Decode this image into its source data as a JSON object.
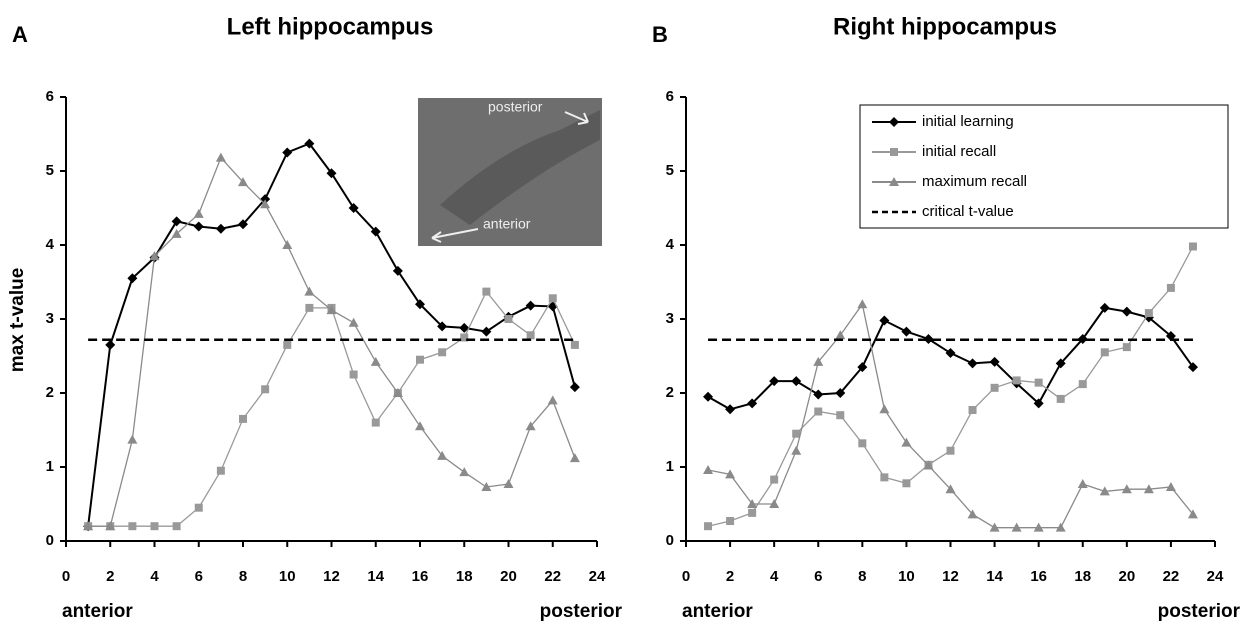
{
  "chart_data": [
    {
      "type": "line",
      "panel_label": "A",
      "title": "Left hippocampus",
      "ylabel": "max t-value",
      "x_start_label": "anterior",
      "x_end_label": "posterior",
      "inset": {
        "labels": [
          "posterior",
          "anterior"
        ]
      },
      "x": [
        1,
        2,
        3,
        4,
        5,
        6,
        7,
        8,
        9,
        10,
        11,
        12,
        13,
        14,
        15,
        16,
        17,
        18,
        19,
        20,
        21,
        22,
        23
      ],
      "series": [
        {
          "name": "initial learning",
          "color": "#000000",
          "marker": "diamond",
          "values": [
            0.2,
            2.65,
            3.55,
            3.83,
            4.32,
            4.25,
            4.22,
            4.28,
            4.62,
            5.25,
            5.37,
            4.97,
            4.5,
            4.18,
            3.65,
            3.2,
            2.9,
            2.88,
            2.83,
            3.03,
            3.18,
            3.17,
            2.08
          ]
        },
        {
          "name": "initial recall",
          "color": "#999999",
          "marker": "square",
          "values": [
            0.2,
            0.2,
            0.2,
            0.2,
            0.2,
            0.45,
            0.95,
            1.65,
            2.05,
            2.65,
            3.15,
            3.15,
            2.25,
            1.6,
            2.0,
            2.45,
            2.55,
            2.75,
            3.37,
            3.0,
            2.78,
            3.28,
            2.65
          ]
        },
        {
          "name": "maximum recall",
          "color": "#8a8a8a",
          "marker": "triangle",
          "values": [
            0.2,
            0.2,
            1.37,
            3.85,
            4.15,
            4.42,
            5.18,
            4.85,
            4.55,
            4.0,
            3.37,
            3.12,
            2.95,
            2.42,
            2.0,
            1.55,
            1.15,
            0.93,
            0.73,
            0.77,
            1.55,
            1.9,
            1.12
          ]
        },
        {
          "name": "critical t-value",
          "color": "#000000",
          "marker": "none",
          "dashed": true,
          "values": [
            2.72,
            2.72,
            2.72,
            2.72,
            2.72,
            2.72,
            2.72,
            2.72,
            2.72,
            2.72,
            2.72,
            2.72,
            2.72,
            2.72,
            2.72,
            2.72,
            2.72,
            2.72,
            2.72,
            2.72,
            2.72,
            2.72,
            2.72
          ]
        }
      ],
      "xlim": [
        0,
        24
      ],
      "xticks": [
        0,
        2,
        4,
        6,
        8,
        10,
        12,
        14,
        16,
        18,
        20,
        22,
        24
      ],
      "ylim": [
        0,
        6
      ],
      "yticks": [
        0,
        1,
        2,
        3,
        4,
        5,
        6
      ],
      "legend": false
    },
    {
      "type": "line",
      "panel_label": "B",
      "title": "Right hippocampus",
      "x_start_label": "anterior",
      "x_end_label": "posterior",
      "x": [
        1,
        2,
        3,
        4,
        5,
        6,
        7,
        8,
        9,
        10,
        11,
        12,
        13,
        14,
        15,
        16,
        17,
        18,
        19,
        20,
        21,
        22,
        23
      ],
      "series": [
        {
          "name": "initial learning",
          "color": "#000000",
          "marker": "diamond",
          "values": [
            1.95,
            1.78,
            1.86,
            2.16,
            2.16,
            1.98,
            2.0,
            2.35,
            2.98,
            2.83,
            2.73,
            2.54,
            2.4,
            2.42,
            2.13,
            1.86,
            2.4,
            2.73,
            3.15,
            3.1,
            3.02,
            2.77,
            2.35
          ]
        },
        {
          "name": "initial recall",
          "color": "#999999",
          "marker": "square",
          "values": [
            0.2,
            0.27,
            0.38,
            0.83,
            1.45,
            1.75,
            1.7,
            1.32,
            0.86,
            0.78,
            1.03,
            1.22,
            1.77,
            2.07,
            2.17,
            2.14,
            1.92,
            2.12,
            2.55,
            2.62,
            3.08,
            3.42,
            3.98
          ]
        },
        {
          "name": "maximum recall",
          "color": "#8a8a8a",
          "marker": "triangle",
          "values": [
            0.96,
            0.9,
            0.5,
            0.5,
            1.22,
            2.42,
            2.78,
            3.2,
            1.78,
            1.33,
            1.02,
            0.7,
            0.36,
            0.18,
            0.18,
            0.18,
            0.18,
            0.77,
            0.67,
            0.7,
            0.7,
            0.73,
            0.36
          ]
        },
        {
          "name": "critical t-value",
          "color": "#000000",
          "marker": "none",
          "dashed": true,
          "values": [
            2.72,
            2.72,
            2.72,
            2.72,
            2.72,
            2.72,
            2.72,
            2.72,
            2.72,
            2.72,
            2.72,
            2.72,
            2.72,
            2.72,
            2.72,
            2.72,
            2.72,
            2.72,
            2.72,
            2.72,
            2.72,
            2.72,
            2.72
          ]
        }
      ],
      "xlim": [
        0,
        24
      ],
      "xticks": [
        0,
        2,
        4,
        6,
        8,
        10,
        12,
        14,
        16,
        18,
        20,
        22,
        24
      ],
      "ylim": [
        0,
        6
      ],
      "yticks": [
        0,
        1,
        2,
        3,
        4,
        5,
        6
      ],
      "legend": true,
      "legend_position": "upper right"
    }
  ]
}
